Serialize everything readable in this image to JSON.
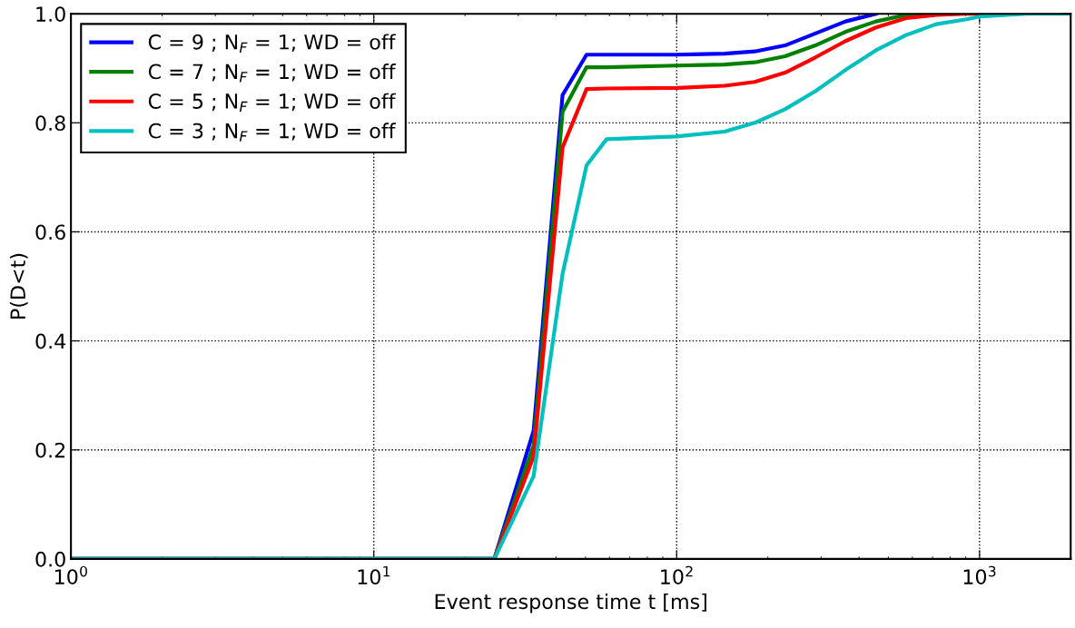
{
  "chart_data": {
    "type": "line",
    "xlabel": "Event response time t [ms]",
    "ylabel": "P(D<t)",
    "x": [
      1,
      25,
      33.7,
      42,
      50.4,
      58.7,
      100,
      144,
      181,
      228,
      287,
      361,
      455,
      572,
      720,
      906,
      1000,
      1430,
      2000
    ],
    "series": [
      {
        "name": "C = 9 ; N$_{F}$ = 1; WD = off",
        "color": "#0000ff",
        "x": [
          1,
          25,
          33.7,
          42,
          50.4,
          58.7,
          100,
          144,
          181,
          228,
          287,
          361,
          455
        ],
        "values": [
          0,
          0,
          0.235,
          0.851,
          0.925,
          0.925,
          0.925,
          0.927,
          0.931,
          0.942,
          0.964,
          0.986,
          1.0
        ]
      },
      {
        "name": "C = 7 ; N$_{F}$ = 1; WD = off",
        "color": "#008000",
        "x": [
          1,
          25,
          33.7,
          42,
          50.4,
          58.7,
          100,
          144,
          181,
          228,
          287,
          361,
          455,
          572,
          720
        ],
        "values": [
          0,
          0,
          0.208,
          0.82,
          0.902,
          0.902,
          0.905,
          0.907,
          0.911,
          0.922,
          0.942,
          0.967,
          0.986,
          0.998,
          1.0
        ]
      },
      {
        "name": "C = 5 ; N$_{F}$ = 1; WD = off",
        "color": "#ff0000",
        "x": [
          1,
          25,
          33.7,
          42,
          50.4,
          58.7,
          100,
          144,
          181,
          228,
          287,
          361,
          455,
          572,
          720,
          906,
          1000
        ],
        "values": [
          0,
          0,
          0.188,
          0.755,
          0.862,
          0.863,
          0.864,
          0.868,
          0.875,
          0.892,
          0.92,
          0.95,
          0.975,
          0.992,
          0.998,
          1.0,
          1.0
        ]
      },
      {
        "name": "C = 3 ; N$_{F}$ = 1; WD = off",
        "color": "#00bfbf",
        "values": [
          0,
          0,
          0.152,
          0.523,
          0.722,
          0.77,
          0.775,
          0.784,
          0.8,
          0.825,
          0.858,
          0.897,
          0.933,
          0.961,
          0.981,
          0.99,
          0.995,
          1.0,
          1.0
        ]
      }
    ],
    "log": "x",
    "xlim": [
      1,
      2000
    ],
    "xticks": [
      {
        "value": 1,
        "label": "10$^{0}$"
      },
      {
        "value": 10,
        "label": "10$^{1}$"
      },
      {
        "value": 100,
        "label": "10$^{2}$"
      },
      {
        "value": 1000,
        "label": "10$^{3}$"
      }
    ],
    "ylim": [
      0,
      1
    ],
    "yticks": [
      {
        "value": 0,
        "label": "0.0"
      },
      {
        "value": 0.2,
        "label": "0.2"
      },
      {
        "value": 0.4,
        "label": "0.4"
      },
      {
        "value": 0.6,
        "label": "0.6"
      },
      {
        "value": 0.8,
        "label": "0.8"
      },
      {
        "value": 1,
        "label": "1.0"
      }
    ],
    "grid": true,
    "legend": "top left",
    "marker": "none",
    "line_style": "solid"
  }
}
